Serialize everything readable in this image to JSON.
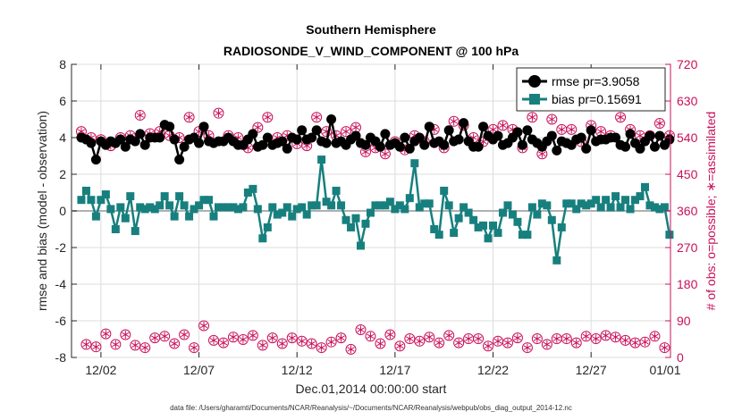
{
  "chart_data": {
    "type": "line",
    "title": "Southern Hemisphere",
    "subtitle": "RADIOSONDE_V_WIND_COMPONENT @ 100 hPa",
    "xlabel": "Dec.01,2014 00:00:00 start",
    "ylabel": "rmse and bias (model - observation)",
    "ylabel_right": "# of obs: o=possible; ∗=assimilated",
    "xlim": [
      0.5,
      31.05
    ],
    "ylim": [
      -8,
      8
    ],
    "ylim_right": [
      0,
      720
    ],
    "x_ticks": [
      2,
      7,
      12,
      17,
      22,
      27,
      32
    ],
    "x_tick_labels": [
      "12/02",
      "12/07",
      "12/12",
      "12/17",
      "12/22",
      "12/27",
      "01/01"
    ],
    "y_ticks": [
      -8,
      -6,
      -4,
      -2,
      0,
      2,
      4,
      6,
      8
    ],
    "y_tick_labels": [
      "-8",
      "-6",
      "-4",
      "-2",
      "0",
      "2",
      "4",
      "6",
      "8"
    ],
    "y_right_ticks": [
      0,
      90,
      180,
      270,
      360,
      450,
      540,
      630,
      720
    ],
    "y_right_tick_labels": [
      "0",
      "90",
      "180",
      "270",
      "360",
      "450",
      "540",
      "630",
      "720"
    ],
    "grid": true,
    "legend_location": "top-right",
    "footer": "data file: /Users/gharamti/Documents/NCAR/Reanalysis/~/Documents/NCAR/Reanalysis/webpub/obs_diag_output_2014-12.nc",
    "colors": {
      "rmse": "#000000",
      "bias": "#17807e",
      "obs": "#c8105a",
      "zero_line": "#b0b0b0",
      "right_axis": "#c8105a"
    },
    "series": [
      {
        "name": "rmse pr=3.9058",
        "color": "#000000",
        "x": [
          1.0,
          1.25,
          1.5,
          1.75,
          2.0,
          2.25,
          2.5,
          2.75,
          3.0,
          3.25,
          3.5,
          3.75,
          4.0,
          4.25,
          4.5,
          4.75,
          5.0,
          5.25,
          5.5,
          5.75,
          6.0,
          6.25,
          6.5,
          6.75,
          7.0,
          7.25,
          7.5,
          7.75,
          8.0,
          8.25,
          8.5,
          8.75,
          9.0,
          9.25,
          9.5,
          9.75,
          10.0,
          10.25,
          10.5,
          10.75,
          11.0,
          11.25,
          11.5,
          11.75,
          12.0,
          12.25,
          12.5,
          12.75,
          13.0,
          13.25,
          13.5,
          13.75,
          14.0,
          14.25,
          14.5,
          14.75,
          15.0,
          15.25,
          15.5,
          15.75,
          16.0,
          16.25,
          16.5,
          16.75,
          17.0,
          17.25,
          17.5,
          17.75,
          18.0,
          18.25,
          18.5,
          18.75,
          19.0,
          19.25,
          19.5,
          19.75,
          20.0,
          20.25,
          20.5,
          20.75,
          21.0,
          21.25,
          21.5,
          21.75,
          22.0,
          22.25,
          22.5,
          22.75,
          23.0,
          23.25,
          23.5,
          23.75,
          24.0,
          24.25,
          24.5,
          24.75,
          25.0,
          25.25,
          25.5,
          25.75,
          26.0,
          26.25,
          26.5,
          26.75,
          27.0,
          27.25,
          27.5,
          27.75,
          28.0,
          28.25,
          28.5,
          28.75,
          29.0,
          29.25,
          29.5,
          29.75,
          30.0,
          30.25,
          30.5,
          30.75,
          31.0
        ],
        "values": [
          4.0,
          3.9,
          3.7,
          2.8,
          3.8,
          3.6,
          3.8,
          3.7,
          3.9,
          3.5,
          3.9,
          3.8,
          4.2,
          3.6,
          4.0,
          4.0,
          4.0,
          4.7,
          4.6,
          3.9,
          2.8,
          3.5,
          3.9,
          4.0,
          3.7,
          4.6,
          3.8,
          3.7,
          3.8,
          3.8,
          4.0,
          3.8,
          3.6,
          3.6,
          3.9,
          4.2,
          3.5,
          3.6,
          4.0,
          3.6,
          3.7,
          3.8,
          3.4,
          4.0,
          3.9,
          4.4,
          3.9,
          4.0,
          4.4,
          3.8,
          3.7,
          5.0,
          3.7,
          3.8,
          3.6,
          3.9,
          4.1,
          3.7,
          3.6,
          4.0,
          3.8,
          3.5,
          4.2,
          3.6,
          3.7,
          3.5,
          4.0,
          3.4,
          3.8,
          4.0,
          3.6,
          4.6,
          3.7,
          3.8,
          3.6,
          4.4,
          3.8,
          3.9,
          4.8,
          3.8,
          3.5,
          3.5,
          4.6,
          4.1,
          3.9,
          4.1,
          3.6,
          3.7,
          4.0,
          4.3,
          3.6,
          4.4,
          3.9,
          3.7,
          3.5,
          3.8,
          4.1,
          3.3,
          3.8,
          3.7,
          3.6,
          3.9,
          4.0,
          3.4,
          4.4,
          3.8,
          3.9,
          3.9,
          4.0,
          4.0,
          3.6,
          3.5,
          4.2,
          3.7,
          3.4,
          3.8,
          4.1,
          3.5,
          4.1,
          3.6,
          3.9
        ]
      },
      {
        "name": "bias pr=0.15691",
        "color": "#17807e",
        "x": [
          1.0,
          1.25,
          1.5,
          1.75,
          2.0,
          2.25,
          2.5,
          2.75,
          3.0,
          3.25,
          3.5,
          3.75,
          4.0,
          4.25,
          4.5,
          4.75,
          5.0,
          5.25,
          5.5,
          5.75,
          6.0,
          6.25,
          6.5,
          6.75,
          7.0,
          7.25,
          7.5,
          7.75,
          8.0,
          8.25,
          8.5,
          8.75,
          9.0,
          9.25,
          9.5,
          9.75,
          10.0,
          10.25,
          10.5,
          10.75,
          11.0,
          11.25,
          11.5,
          11.75,
          12.0,
          12.25,
          12.5,
          12.75,
          13.0,
          13.25,
          13.5,
          13.75,
          14.0,
          14.25,
          14.5,
          14.75,
          15.0,
          15.25,
          15.5,
          15.75,
          16.0,
          16.25,
          16.5,
          16.75,
          17.0,
          17.25,
          17.5,
          17.75,
          18.0,
          18.25,
          18.5,
          18.75,
          19.0,
          19.25,
          19.5,
          19.75,
          20.0,
          20.25,
          20.5,
          20.75,
          21.0,
          21.25,
          21.5,
          21.75,
          22.0,
          22.25,
          22.5,
          22.75,
          23.0,
          23.25,
          23.5,
          23.75,
          24.0,
          24.25,
          24.5,
          24.75,
          25.0,
          25.25,
          25.5,
          25.75,
          26.0,
          26.25,
          26.5,
          26.75,
          27.0,
          27.25,
          27.5,
          27.75,
          28.0,
          28.25,
          28.5,
          28.75,
          29.0,
          29.25,
          29.5,
          29.75,
          30.0,
          30.25,
          30.5,
          30.75,
          31.0
        ],
        "values": [
          0.6,
          1.1,
          0.6,
          -0.3,
          0.6,
          0.9,
          0.1,
          -1.0,
          0.2,
          -0.4,
          0.8,
          -1.1,
          0.2,
          0.1,
          0.2,
          0.1,
          0.3,
          0.8,
          0.3,
          -0.3,
          0.8,
          0.3,
          -0.3,
          0.1,
          0.3,
          0.6,
          0.6,
          -0.3,
          0.2,
          0.2,
          0.2,
          0.2,
          0.1,
          0.2,
          1.0,
          1.2,
          0.1,
          -1.5,
          -0.9,
          0.2,
          -0.2,
          -0.1,
          0.2,
          -0.3,
          0.1,
          0.2,
          -0.2,
          0.3,
          0.3,
          2.8,
          0.5,
          0.3,
          1.1,
          0.3,
          -0.5,
          -0.9,
          -0.4,
          -1.9,
          -0.7,
          -0.1,
          0.3,
          0.3,
          0.3,
          0.5,
          0.1,
          0.3,
          0.1,
          0.7,
          2.6,
          0.2,
          0.4,
          0.4,
          -1.0,
          -1.3,
          1.1,
          0.3,
          -1.2,
          -0.4,
          0.2,
          -0.1,
          -0.5,
          -0.9,
          -0.8,
          -1.5,
          -0.8,
          -1.2,
          -0.1,
          0.3,
          -0.2,
          -0.6,
          -1.3,
          -1.3,
          0.2,
          -0.2,
          0.4,
          0.3,
          -0.5,
          -2.7,
          -0.9,
          0.4,
          0.4,
          0.1,
          0.4,
          0.3,
          0.4,
          0.6,
          0.2,
          0.6,
          0.2,
          0.8,
          0.2,
          0.6,
          0.1,
          0.6,
          0.8,
          1.3,
          0.3,
          0.2,
          0.1,
          0.2,
          -1.3
        ]
      },
      {
        "name": "# of obs possible",
        "color": "#c8105a",
        "axis": "right",
        "marker": "o",
        "x": [
          1.0,
          1.25,
          1.5,
          1.75,
          2.0,
          2.25,
          2.5,
          2.75,
          3.0,
          3.25,
          3.5,
          3.75,
          4.0,
          4.25,
          4.5,
          4.75,
          5.0,
          5.25,
          5.5,
          5.75,
          6.0,
          6.25,
          6.5,
          6.75,
          7.0,
          7.25,
          7.5,
          7.75,
          8.0,
          8.25,
          8.5,
          8.75,
          9.0,
          9.25,
          9.5,
          9.75,
          10.0,
          10.25,
          10.5,
          10.75,
          11.0,
          11.25,
          11.5,
          11.75,
          12.0,
          12.25,
          12.5,
          12.75,
          13.0,
          13.25,
          13.5,
          13.75,
          14.0,
          14.25,
          14.5,
          14.75,
          15.0,
          15.25,
          15.5,
          15.75,
          16.0,
          16.25,
          16.5,
          16.75,
          17.0,
          17.25,
          17.5,
          17.75,
          18.0,
          18.25,
          18.5,
          18.75,
          19.0,
          19.25,
          19.5,
          19.75,
          20.0,
          20.25,
          20.5,
          20.75,
          21.0,
          21.25,
          21.5,
          21.75,
          22.0,
          22.25,
          22.5,
          22.75,
          23.0,
          23.25,
          23.5,
          23.75,
          24.0,
          24.25,
          24.5,
          24.75,
          25.0,
          25.25,
          25.5,
          25.75,
          26.0,
          26.25,
          26.5,
          26.75,
          27.0,
          27.25,
          27.5,
          27.75,
          28.0,
          28.25,
          28.5,
          28.75,
          29.0,
          29.25,
          29.5,
          29.75,
          30.0,
          30.25,
          30.5,
          30.75,
          31.0
        ],
        "values": [
          555,
          32,
          540,
          26,
          535,
          58,
          520,
          32,
          540,
          56,
          545,
          30,
          595,
          24,
          550,
          48,
          555,
          52,
          545,
          34,
          540,
          56,
          590,
          24,
          555,
          78,
          545,
          42,
          600,
          36,
          545,
          50,
          540,
          44,
          515,
          54,
          565,
          30,
          590,
          48,
          540,
          34,
          545,
          48,
          525,
          40,
          520,
          34,
          590,
          24,
          555,
          38,
          545,
          48,
          555,
          20,
          565,
          68,
          505,
          52,
          515,
          34,
          500,
          56,
          530,
          28,
          510,
          46,
          545,
          40,
          530,
          50,
          560,
          36,
          515,
          54,
          580,
          36,
          570,
          46,
          540,
          46,
          530,
          28,
          560,
          40,
          570,
          36,
          560,
          48,
          515,
          24,
          590,
          46,
          500,
          32,
          585,
          46,
          560,
          46,
          560,
          36,
          530,
          52,
          570,
          46,
          555,
          54,
          545,
          50,
          590,
          42,
          560,
          36,
          545,
          38,
          545,
          52,
          575,
          24,
          545
        ]
      },
      {
        "name": "# of obs assimilated",
        "color": "#c8105a",
        "axis": "right",
        "marker": "*",
        "x": [
          1.0,
          1.25,
          1.5,
          1.75,
          2.0,
          2.25,
          2.5,
          2.75,
          3.0,
          3.25,
          3.5,
          3.75,
          4.0,
          4.25,
          4.5,
          4.75,
          5.0,
          5.25,
          5.5,
          5.75,
          6.0,
          6.25,
          6.5,
          6.75,
          7.0,
          7.25,
          7.5,
          7.75,
          8.0,
          8.25,
          8.5,
          8.75,
          9.0,
          9.25,
          9.5,
          9.75,
          10.0,
          10.25,
          10.5,
          10.75,
          11.0,
          11.25,
          11.5,
          11.75,
          12.0,
          12.25,
          12.5,
          12.75,
          13.0,
          13.25,
          13.5,
          13.75,
          14.0,
          14.25,
          14.5,
          14.75,
          15.0,
          15.25,
          15.5,
          15.75,
          16.0,
          16.25,
          16.5,
          16.75,
          17.0,
          17.25,
          17.5,
          17.75,
          18.0,
          18.25,
          18.5,
          18.75,
          19.0,
          19.25,
          19.5,
          19.75,
          20.0,
          20.25,
          20.5,
          20.75,
          21.0,
          21.25,
          21.5,
          21.75,
          22.0,
          22.25,
          22.5,
          22.75,
          23.0,
          23.25,
          23.5,
          23.75,
          24.0,
          24.25,
          24.5,
          24.75,
          25.0,
          25.25,
          25.5,
          25.75,
          26.0,
          26.25,
          26.5,
          26.75,
          27.0,
          27.25,
          27.5,
          27.75,
          28.0,
          28.25,
          28.5,
          28.75,
          29.0,
          29.25,
          29.5,
          29.75,
          30.0,
          30.25,
          30.5,
          30.75,
          31.0
        ],
        "values": [
          555,
          32,
          540,
          26,
          535,
          58,
          520,
          32,
          540,
          56,
          545,
          30,
          595,
          24,
          550,
          48,
          555,
          52,
          545,
          34,
          540,
          56,
          590,
          24,
          555,
          78,
          545,
          42,
          600,
          36,
          545,
          50,
          540,
          44,
          515,
          54,
          565,
          30,
          590,
          48,
          540,
          34,
          545,
          48,
          525,
          40,
          520,
          34,
          590,
          24,
          555,
          38,
          545,
          48,
          555,
          20,
          565,
          68,
          505,
          52,
          515,
          34,
          500,
          56,
          530,
          28,
          510,
          46,
          545,
          40,
          530,
          50,
          560,
          36,
          515,
          54,
          580,
          36,
          570,
          46,
          540,
          46,
          530,
          28,
          560,
          40,
          570,
          36,
          560,
          48,
          515,
          24,
          590,
          46,
          500,
          32,
          585,
          46,
          560,
          46,
          560,
          36,
          530,
          52,
          570,
          46,
          555,
          54,
          545,
          50,
          590,
          42,
          560,
          36,
          545,
          38,
          545,
          52,
          575,
          24,
          545
        ]
      }
    ]
  }
}
